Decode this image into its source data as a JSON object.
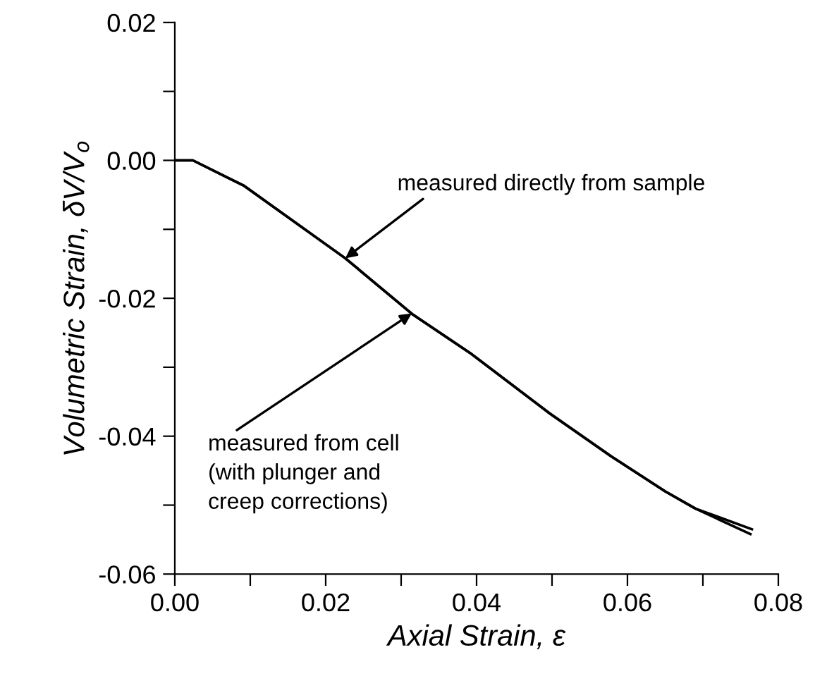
{
  "chart_data": {
    "type": "line",
    "xlabel": "Axial Strain, ε",
    "ylabel": "Volumetric Strain, δV/V$_{o}$",
    "series": [
      {
        "color": "#000000",
        "x": [
          0,
          0.0024,
          0.0092,
          0.0226,
          0.0316,
          0.0391,
          0.0497,
          0.0578,
          0.065,
          0.069,
          0.0763
        ],
        "values": [
          0,
          0,
          -0.0037,
          -0.0142,
          -0.0224,
          -0.0279,
          -0.0367,
          -0.0429,
          -0.048,
          -0.0505,
          -0.0542
        ]
      },
      {
        "color": "#000000",
        "x": [
          0,
          0.0024,
          0.0092,
          0.0226,
          0.0316,
          0.0391,
          0.0497,
          0.0578,
          0.065,
          0.069,
          0.0765
        ],
        "values": [
          0,
          0,
          -0.0037,
          -0.0142,
          -0.0224,
          -0.0279,
          -0.0367,
          -0.0429,
          -0.048,
          -0.0505,
          -0.0535
        ]
      }
    ],
    "xlim": [
      0,
      0.08
    ],
    "ylim": [
      -0.06,
      0.02
    ],
    "xticks": [
      {
        "value": 0,
        "label": "0.00"
      },
      {
        "value": 0.01,
        "label": null
      },
      {
        "value": 0.02,
        "label": "0.02"
      },
      {
        "value": 0.03,
        "label": null
      },
      {
        "value": 0.04,
        "label": "0.04"
      },
      {
        "value": 0.05,
        "label": null
      },
      {
        "value": 0.06,
        "label": "0.06"
      },
      {
        "value": 0.07,
        "label": null
      },
      {
        "value": 0.08,
        "label": "0.08"
      }
    ],
    "yticks": [
      {
        "value": -0.06,
        "label": "-0.06"
      },
      {
        "value": -0.05,
        "label": null
      },
      {
        "value": -0.04,
        "label": "-0.04"
      },
      {
        "value": -0.03,
        "label": null
      },
      {
        "value": -0.02,
        "label": "-0.02"
      },
      {
        "value": -0.01,
        "label": null
      },
      {
        "value": 0,
        "label": "0.00"
      },
      {
        "value": 0.01,
        "label": null
      },
      {
        "value": 0.02,
        "label": "0.02"
      }
    ],
    "annotations": [
      {
        "text": "measured directly from sample",
        "x": 0.0226,
        "y": -0.0142
      },
      {
        "text": "measured from cell\n(with plunger and\ncreep corrections)",
        "x": 0.0314,
        "y": -0.0222
      }
    ],
    "grid": false,
    "legend": false,
    "marker": "none",
    "line_style": "solid"
  }
}
